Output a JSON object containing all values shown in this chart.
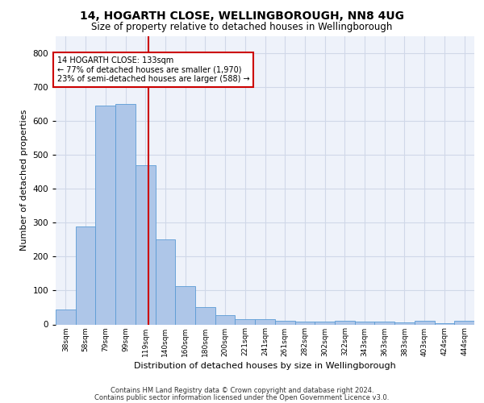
{
  "title1": "14, HOGARTH CLOSE, WELLINGBOROUGH, NN8 4UG",
  "title2": "Size of property relative to detached houses in Wellingborough",
  "xlabel": "Distribution of detached houses by size in Wellingborough",
  "ylabel": "Number of detached properties",
  "bin_labels": [
    "38sqm",
    "58sqm",
    "79sqm",
    "99sqm",
    "119sqm",
    "140sqm",
    "160sqm",
    "180sqm",
    "200sqm",
    "221sqm",
    "241sqm",
    "261sqm",
    "282sqm",
    "302sqm",
    "322sqm",
    "343sqm",
    "363sqm",
    "383sqm",
    "403sqm",
    "424sqm",
    "444sqm"
  ],
  "bar_heights": [
    45,
    290,
    645,
    650,
    470,
    250,
    112,
    52,
    27,
    15,
    15,
    10,
    8,
    8,
    10,
    8,
    8,
    5,
    10,
    3,
    10
  ],
  "bar_color": "#aec6e8",
  "bar_edge_color": "#5b9bd5",
  "grid_color": "#d0d8e8",
  "background_color": "#eef2fa",
  "vline_color": "#cc0000",
  "annotation_text": "14 HOGARTH CLOSE: 133sqm\n← 77% of detached houses are smaller (1,970)\n23% of semi-detached houses are larger (588) →",
  "annotation_box_edge": "#cc0000",
  "footer1": "Contains HM Land Registry data © Crown copyright and database right 2024.",
  "footer2": "Contains public sector information licensed under the Open Government Licence v3.0.",
  "ylim": [
    0,
    850
  ],
  "yticks": [
    0,
    100,
    200,
    300,
    400,
    500,
    600,
    700,
    800
  ]
}
